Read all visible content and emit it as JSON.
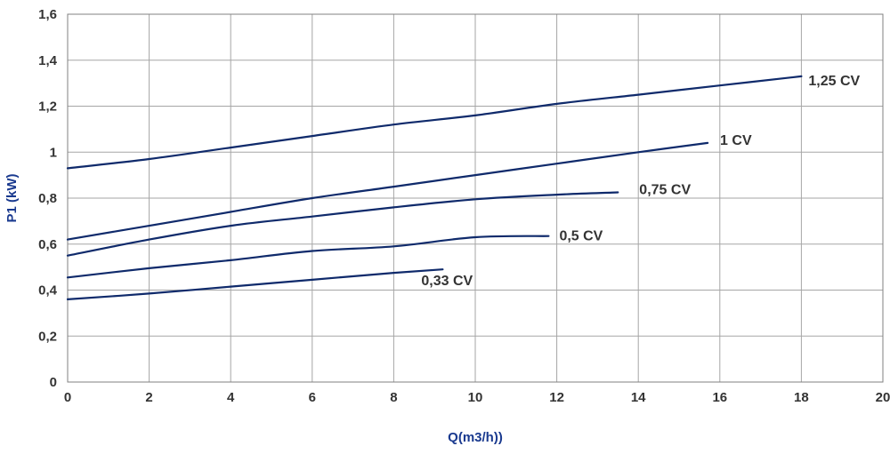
{
  "chart_data": {
    "type": "line",
    "xlabel": "Q(m3/h))",
    "ylabel": "P1 (kW)",
    "xlim": [
      0,
      20
    ],
    "ylim": [
      0,
      1.6
    ],
    "x_ticks": [
      "0",
      "2",
      "4",
      "6",
      "8",
      "10",
      "12",
      "14",
      "16",
      "18",
      "20"
    ],
    "y_ticks": [
      "0",
      "0,2",
      "0,4",
      "0,6",
      "0,8",
      "1",
      "1,2",
      "1,4",
      "1,6"
    ],
    "grid": true,
    "line_color": "#0f2a6b",
    "series": [
      {
        "name": "1,25 CV",
        "points": [
          [
            0,
            0.93
          ],
          [
            2,
            0.97
          ],
          [
            4,
            1.02
          ],
          [
            6,
            1.07
          ],
          [
            8,
            1.12
          ],
          [
            10,
            1.16
          ],
          [
            12,
            1.21
          ],
          [
            14,
            1.25
          ],
          [
            16,
            1.29
          ],
          [
            18,
            1.33
          ]
        ]
      },
      {
        "name": "1 CV",
        "points": [
          [
            0,
            0.62
          ],
          [
            2,
            0.68
          ],
          [
            4,
            0.74
          ],
          [
            6,
            0.8
          ],
          [
            8,
            0.85
          ],
          [
            10,
            0.9
          ],
          [
            12,
            0.95
          ],
          [
            14,
            1.0
          ],
          [
            15.7,
            1.04
          ]
        ]
      },
      {
        "name": "0,75 CV",
        "points": [
          [
            0,
            0.55
          ],
          [
            2,
            0.62
          ],
          [
            4,
            0.68
          ],
          [
            6,
            0.72
          ],
          [
            8,
            0.76
          ],
          [
            10,
            0.795
          ],
          [
            12,
            0.815
          ],
          [
            13.5,
            0.825
          ]
        ]
      },
      {
        "name": "0,5 CV",
        "points": [
          [
            0,
            0.455
          ],
          [
            2,
            0.495
          ],
          [
            4,
            0.53
          ],
          [
            6,
            0.57
          ],
          [
            8,
            0.59
          ],
          [
            10,
            0.63
          ],
          [
            11.8,
            0.635
          ]
        ]
      },
      {
        "name": "0,33 CV",
        "points": [
          [
            0,
            0.36
          ],
          [
            2,
            0.385
          ],
          [
            4,
            0.415
          ],
          [
            6,
            0.445
          ],
          [
            8,
            0.475
          ],
          [
            9.2,
            0.49
          ]
        ]
      }
    ]
  }
}
